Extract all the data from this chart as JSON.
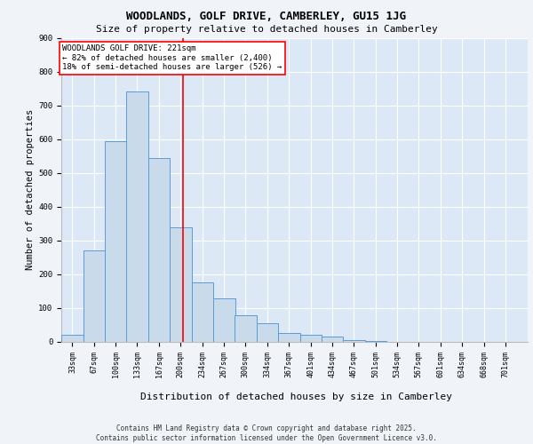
{
  "title": "WOODLANDS, GOLF DRIVE, CAMBERLEY, GU15 1JG",
  "subtitle": "Size of property relative to detached houses in Camberley",
  "xlabel": "Distribution of detached houses by size in Camberley",
  "ylabel": "Number of detached properties",
  "bar_color": "#c9daea",
  "bar_edge_color": "#5b9bd5",
  "background_color": "#dce8f5",
  "grid_color": "#ffffff",
  "vline_x": 221,
  "vline_color": "red",
  "annotation_text": "WOODLANDS GOLF DRIVE: 221sqm\n← 82% of detached houses are smaller (2,400)\n18% of semi-detached houses are larger (526) →",
  "footer_text": "Contains HM Land Registry data © Crown copyright and database right 2025.\nContains public sector information licensed under the Open Government Licence v3.0.",
  "bins": [
    33,
    67,
    100,
    133,
    167,
    200,
    234,
    267,
    300,
    334,
    367,
    401,
    434,
    467,
    501,
    534,
    567,
    601,
    634,
    668,
    701
  ],
  "counts": [
    20,
    270,
    595,
    740,
    545,
    340,
    175,
    130,
    80,
    55,
    25,
    20,
    15,
    5,
    2,
    1,
    1,
    0,
    0,
    1
  ],
  "ylim": [
    0,
    900
  ],
  "yticks": [
    0,
    100,
    200,
    300,
    400,
    500,
    600,
    700,
    800,
    900
  ],
  "title_fontsize": 9,
  "subtitle_fontsize": 8,
  "ylabel_fontsize": 7.5,
  "xlabel_fontsize": 8,
  "tick_fontsize": 6,
  "annot_fontsize": 6.5,
  "footer_fontsize": 5.5
}
